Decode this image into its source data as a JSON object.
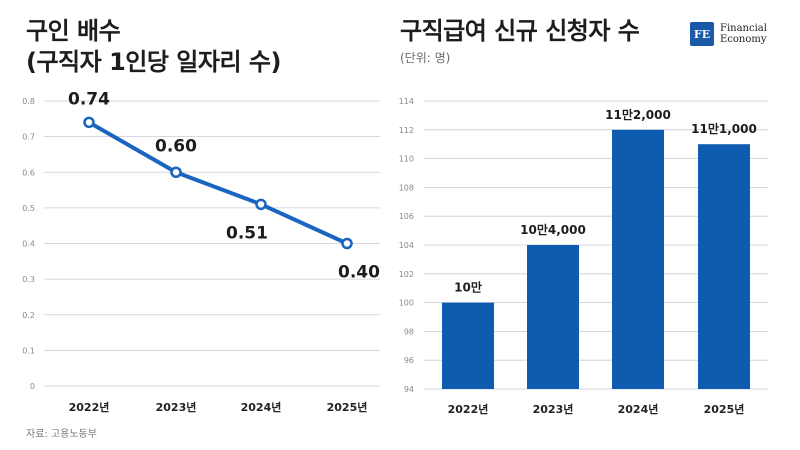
{
  "left": {
    "title_lines": [
      "구인 배수",
      "(구직자 1인당 일자리 수)"
    ]
  },
  "right": {
    "title": "구직급여 신규 신청자 수",
    "subtitle": "(단위: 명)"
  },
  "logo": {
    "mark": "FE",
    "line1": "Financial",
    "line2": "Economy"
  },
  "source": "자료: 고용노동부",
  "colors": {
    "line": "#1a65c0",
    "bar": "#0f5bb0",
    "grid": "#c9c9d6"
  },
  "chart_data": [
    {
      "type": "line",
      "x": [
        "2022년",
        "2023년",
        "2024년",
        "2025년"
      ],
      "values": [
        0.74,
        0.6,
        0.51,
        0.4
      ],
      "data_labels": [
        "0.74",
        "0.60",
        "0.51",
        "0.40"
      ],
      "yticks": [
        "0",
        "0.1",
        "0.2",
        "0.3",
        "0.4",
        "0.5",
        "0.6",
        "0.7",
        "0.8"
      ],
      "ylim": [
        0,
        0.8
      ],
      "grid": true
    },
    {
      "type": "bar",
      "categories": [
        "2022년",
        "2023년",
        "2024년",
        "2025년"
      ],
      "values": [
        100,
        104,
        112,
        111
      ],
      "data_labels": [
        "10만",
        "10만4,000",
        "11만2,000",
        "11만1,000"
      ],
      "yticks": [
        "94",
        "96",
        "98",
        "100",
        "102",
        "104",
        "106",
        "108",
        "110",
        "112",
        "114"
      ],
      "ylim": [
        94,
        114
      ],
      "grid": true
    }
  ]
}
